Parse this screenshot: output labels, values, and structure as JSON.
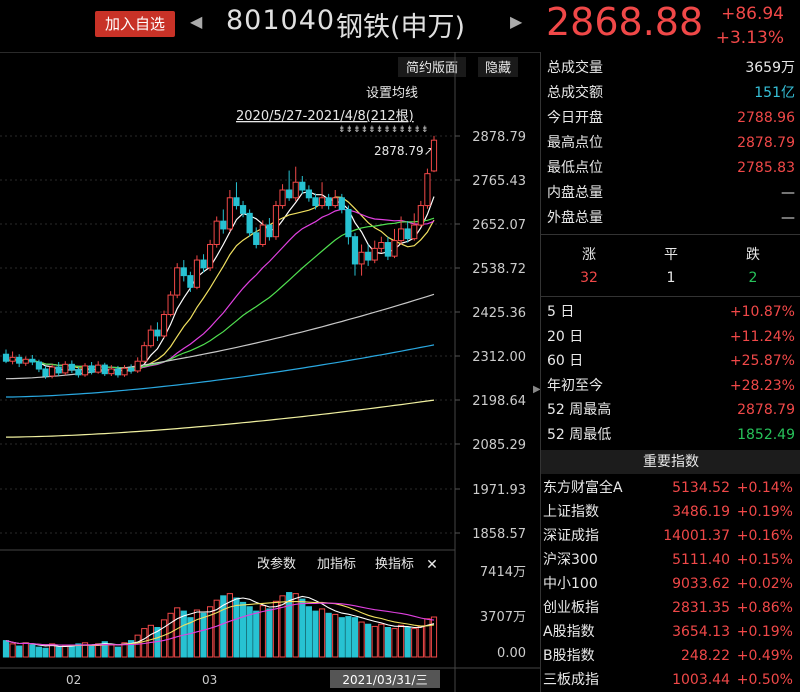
{
  "header": {
    "fav_label": "加入自选",
    "left_arrow": "◀",
    "right_arrow": "▶",
    "code": "801040",
    "name": "钢铁(申万)",
    "price": "2868.88",
    "change": "+86.94",
    "change_pct": "+3.13%"
  },
  "toolbar": {
    "simple": "简约版面",
    "hide": "隐藏",
    "ma_setting": "设置均线",
    "range": "2020/5/27-2021/4/8(212根)",
    "high_marker": "2878.79↗"
  },
  "sub_toolbar": {
    "params": "改参数",
    "add_ind": "加指标",
    "switch_ind": "换指标",
    "close": "✕"
  },
  "axis": {
    "price_ticks": [
      "2878.79",
      "2765.43",
      "2652.07",
      "2538.72",
      "2425.36",
      "2312.00",
      "2198.64",
      "2085.29",
      "1971.93",
      "1858.57"
    ],
    "vol_ticks": [
      "7414万",
      "3707万",
      "0.00"
    ],
    "x_labels": [
      "02",
      "03"
    ],
    "cursor_date": "2021/03/31/三"
  },
  "stats": [
    {
      "k": "总成交量",
      "v": "3659万",
      "c": "white"
    },
    {
      "k": "总成交额",
      "v": "151亿",
      "c": "cyan"
    },
    {
      "k": "今日开盘",
      "v": "2788.96",
      "c": "red"
    },
    {
      "k": "最高点位",
      "v": "2878.79",
      "c": "red"
    },
    {
      "k": "最低点位",
      "v": "2785.83",
      "c": "red"
    },
    {
      "k": "内盘总量",
      "v": "—",
      "c": "white"
    },
    {
      "k": "外盘总量",
      "v": "—",
      "c": "white"
    }
  ],
  "updown": {
    "up_label": "涨",
    "flat_label": "平",
    "down_label": "跌",
    "up": "32",
    "flat": "1",
    "down": "2"
  },
  "periods": [
    {
      "k": "5 日",
      "v": "+10.87%",
      "c": "red"
    },
    {
      "k": "20 日",
      "v": "+11.24%",
      "c": "red"
    },
    {
      "k": "60 日",
      "v": "+25.87%",
      "c": "red"
    },
    {
      "k": "年初至今",
      "v": "+28.23%",
      "c": "red"
    },
    {
      "k": "52 周最高",
      "v": "2878.79",
      "c": "red"
    },
    {
      "k": "52 周最低",
      "v": "1852.49",
      "c": "green"
    }
  ],
  "important": {
    "title": "重要指数",
    "items": [
      {
        "k": "东方财富全A",
        "v1": "5134.52",
        "v2": "+0.14%"
      },
      {
        "k": "上证指数",
        "v1": "3486.19",
        "v2": "+0.19%"
      },
      {
        "k": "深证成指",
        "v1": "14001.37",
        "v2": "+0.16%"
      },
      {
        "k": "沪深300",
        "v1": "5111.40",
        "v2": "+0.15%"
      },
      {
        "k": "中小100",
        "v1": "9033.62",
        "v2": "+0.02%"
      },
      {
        "k": "创业板指",
        "v1": "2831.35",
        "v2": "+0.86%"
      },
      {
        "k": "A股指数",
        "v1": "3654.13",
        "v2": "+0.19%"
      },
      {
        "k": "B股指数",
        "v1": "248.22",
        "v2": "+0.49%"
      },
      {
        "k": "三板成指",
        "v1": "1003.44",
        "v2": "+0.50%"
      }
    ]
  },
  "colors": {
    "up": "#f04848",
    "down": "#27c2d2",
    "ma5": "#ffffff",
    "ma10": "#f0e060",
    "ma20": "#e040e0",
    "ma30": "#50e050",
    "ma60": "#c8c8c8",
    "ma120": "#2aa8e0",
    "ma250": "#f0f0a0"
  }
}
